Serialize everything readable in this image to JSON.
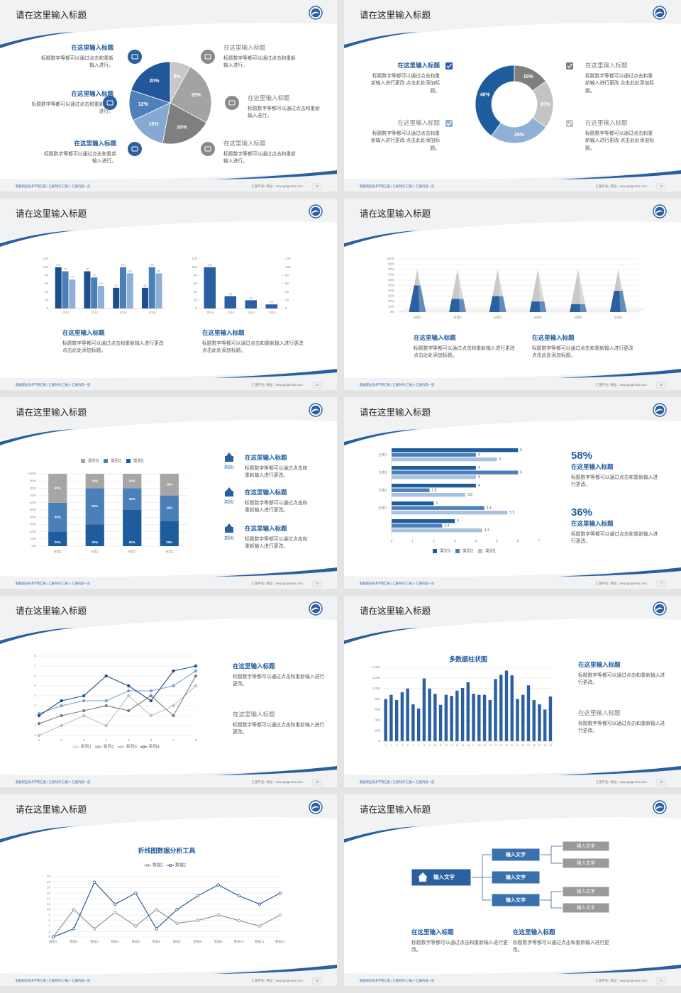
{
  "slides": [
    {
      "title": "请在这里输入标题",
      "footer_left": "船舶职业技术学院汇报 | 汇报时间·汇报人·汇报内容一览",
      "footer_right": "汇报平台 | 网址：www.pptgenius.com",
      "page": 12,
      "blocks": [
        {
          "heading": "在这里输入标题",
          "body": "标题数字等都可以通过点击和重新输入进行。"
        },
        {
          "heading": "在这里输入标题",
          "body": "标题数字等都可以通过点击和重新输入进行。"
        },
        {
          "heading": "在这里输入标题",
          "body": "标题数字等都可以通过点击和重新输入进行。"
        },
        {
          "heading": "在这里输入标题",
          "body": "标题数字等都可以通过点击和重新输入进行。"
        },
        {
          "heading": "在这里输入标题",
          "body": "标题数字等都可以通过点击和重新输入进行。"
        },
        {
          "heading": "在这里输入标题",
          "body": "标题数字等都可以通过点击和重新输入进行。"
        }
      ]
    },
    {
      "title": "请在这里输入标题",
      "footer_left": "船舶职业技术学院汇报 | 汇报时间·汇报人·汇报内容一览",
      "footer_right": "汇报平台 | 网址：www.pptgenius.com",
      "page": 13,
      "blocks": [
        {
          "heading": "在这里输入标题",
          "body": "标题数字等都可以通过点击和重新输入进行更改 点击此处添加标题。"
        },
        {
          "heading": "在这里输入标题",
          "body": "标题数字等都可以通过点击和重新输入进行更改 点击此处添加标题。"
        },
        {
          "heading": "在这里输入标题",
          "body": "标题数字等都可以通过点击和重新输入进行更改 点击此处添加标题。"
        },
        {
          "heading": "在这里输入标题",
          "body": "标题数字等都可以通过点击和重新输入进行更改 点击此处添加标题。"
        }
      ]
    },
    {
      "title": "请在这里输入标题",
      "footer_left": "船舶职业技术学院汇报 | 汇报时间·汇报人·汇报内容一览",
      "footer_right": "汇报平台 | 网址：www.pptgenius.com",
      "page": 14,
      "blocks": [
        {
          "heading": "在这里输入标题",
          "body": "标题数字等都可以通过点击和重新输入进行更改 点击此处添加标题。"
        },
        {
          "heading": "在这里输入标题",
          "body": "标题数字等都可以通过点击和重新输入进行更改 点击此处添加标题。"
        }
      ]
    },
    {
      "title": "请在这里输入标题",
      "footer_left": "船舶职业技术学院汇报 | 汇报时间·汇报人·汇报内容一览",
      "footer_right": "汇报平台 | 网址：www.pptgenius.com",
      "page": 15,
      "blocks": [
        {
          "heading": "在这里输入标题",
          "body": "标题数字等都可以通过点击和重新输入进行更改 点击此处添加标题。"
        },
        {
          "heading": "在这里输入标题",
          "body": "标题数字等都可以通过点击和重新输入进行更改 点击此处添加标题。"
        }
      ]
    },
    {
      "title": "请在这里输入标题",
      "footer_left": "船舶职业技术学院汇报 | 汇报时间·汇报人·汇报内容一览",
      "footer_right": "汇报平台 | 网址：www.pptgenius.com",
      "page": 16,
      "blocks": [
        {
          "icon_label": "类别1",
          "heading": "在这里输入标题",
          "body": "标题数字等都可以通过点击和重新输入进行更改。"
        },
        {
          "icon_label": "类别2",
          "heading": "在这里输入标题",
          "body": "标题数字等都可以通过点击和重新输入进行更改。"
        },
        {
          "icon_label": "类别3",
          "heading": "在这里输入标题",
          "body": "标题数字等都可以通过点击和重新输入进行更改。"
        }
      ]
    },
    {
      "title": "请在这里输入标题",
      "footer_left": "船舶职业技术学院汇报 | 汇报时间·汇报人·汇报内容一览",
      "footer_right": "汇报平台 | 网址：www.pptgenius.com",
      "page": 17,
      "blocks": [
        {
          "figure": "58%",
          "heading": "在这里输入标题",
          "body": "标题数字等都可以通过点击和重新输入进行更改。"
        },
        {
          "figure": "36%",
          "heading": "在这里输入标题",
          "body": "标题数字等都可以通过点击和重新输入进行更改。"
        }
      ]
    },
    {
      "title": "请在这里输入标题",
      "footer_left": "船舶职业技术学院汇报 | 汇报时间·汇报人·汇报内容一览",
      "footer_right": "汇报平台 | 网址：www.pptgenius.com",
      "page": 18,
      "blocks": [
        {
          "heading": "在这里输入标题",
          "body": "标题数字等都可以通过点击和重新输入进行更改。"
        },
        {
          "heading": "在这里输入标题",
          "body": "标题数字等都可以通过点击和重新输入进行更改。"
        }
      ]
    },
    {
      "title": "请在这里输入标题",
      "footer_left": "船舶职业技术学院汇报 | 汇报时间·汇报人·汇报内容一览",
      "footer_right": "汇报平台 | 网址：www.pptgenius.com",
      "page": 19,
      "blocks": [
        {
          "heading": "在这里输入标题",
          "body": "标题数字等都可以通过点击和重新输入进行更改。"
        },
        {
          "heading": "在这里输入标题",
          "body": "标题数字等都可以通过点击和重新输入进行更改。"
        }
      ]
    },
    {
      "title": "请在这里输入标题",
      "footer_left": "船舶职业技术学院汇报 | 汇报时间·汇报人·汇报内容一览",
      "footer_right": "汇报平台 | 网址：www.pptgenius.com",
      "page": 20,
      "blocks": []
    },
    {
      "title": "请在这里输入标题",
      "footer_left": "船舶职业技术学院汇报 | 汇报时间·汇报人·汇报内容一览",
      "footer_right": "汇报平台 | 网址：www.pptgenius.com",
      "page": 21,
      "diagram": {
        "root": "输入文字",
        "branches": [
          "输入文字",
          "输入文字",
          "输入文字"
        ],
        "leaves": [
          "输入文字",
          "输入文字",
          "输入文字",
          "输入文字"
        ]
      },
      "blocks": [
        {
          "heading": "在这里输入标题",
          "body": "标题数字等都可以通过点击和重新输入进行更改。"
        },
        {
          "heading": "在这里输入标题",
          "body": "标题数字等都可以通过点击和重新输入进行更改。"
        }
      ]
    }
  ],
  "chart_data": [
    {
      "type": "pie",
      "values": [
        8,
        25,
        20,
        15,
        12,
        20
      ],
      "value_labels": [
        "8%",
        "25%",
        "20%",
        "15%",
        "12%",
        "20%"
      ],
      "colors": [
        "#c8c8c8",
        "#a3a3a3",
        "#7f7f7f",
        "#86a9d2",
        "#4f80b9",
        "#22589a"
      ]
    },
    {
      "type": "donut",
      "values": [
        15,
        20,
        25,
        40
      ],
      "value_labels": [
        "15%",
        "20%",
        "25%",
        "40%"
      ],
      "colors": [
        "#7f7f7f",
        "#c3c3c3",
        "#8fb0d6",
        "#1f5c9e"
      ]
    },
    {
      "type": "bar",
      "categories": [
        "2010",
        "2012",
        "2014",
        "2016"
      ],
      "series": [
        {
          "color": "#1f4e8c",
          "values": [
            100,
            90,
            50,
            50
          ]
        },
        {
          "color": "#4a7fb8",
          "values": [
            90,
            75,
            100,
            100
          ]
        },
        {
          "color": "#8fb0d6",
          "values": [
            70,
            55,
            85,
            85
          ]
        }
      ],
      "ylim": [
        0,
        120
      ],
      "yticks": [
        0,
        20,
        40,
        60,
        80,
        100,
        120
      ],
      "grid": false,
      "data_labels": true
    },
    {
      "type": "bar",
      "categories": [
        "2016",
        "2014",
        "2012",
        "2010"
      ],
      "values": [
        100,
        30,
        20,
        10
      ],
      "color": "#2a5fa0",
      "ylim": [
        0,
        120
      ],
      "yticks": [
        0,
        20,
        40,
        60,
        80,
        100,
        120
      ],
      "y2lim": [
        0,
        120
      ],
      "y2ticks": [
        0,
        20,
        40,
        60,
        80,
        100,
        120
      ],
      "grid": false,
      "data_labels": true
    },
    {
      "type": "pyramid3d",
      "categories": [
        "分类1",
        "分类2",
        "分类3",
        "分类4",
        "分类5",
        "分类6"
      ],
      "series": [
        {
          "color": "#2a5fa0",
          "values": [
            50,
            25,
            30,
            20,
            15,
            40
          ]
        },
        {
          "color": "#c9c9c9",
          "values": [
            30,
            55,
            50,
            60,
            65,
            40
          ]
        }
      ],
      "ylim": [
        0,
        100
      ],
      "yticks": [
        {
          "value": 0,
          "label": "0%"
        },
        {
          "value": 10,
          "label": "10%"
        },
        {
          "value": 20,
          "label": "20%"
        },
        {
          "value": 30,
          "label": "30%"
        },
        {
          "value": 40,
          "label": "40%"
        },
        {
          "value": 50,
          "label": "50%"
        },
        {
          "value": 60,
          "label": "60%"
        },
        {
          "value": 70,
          "label": "70%"
        },
        {
          "value": 80,
          "label": "80%"
        },
        {
          "value": 90,
          "label": "90%"
        },
        {
          "value": 100,
          "label": "100%"
        }
      ],
      "grid": true
    },
    {
      "type": "stacked100",
      "categories": [
        "分类1",
        "分类2",
        "分类3",
        "分类4"
      ],
      "series": [
        {
          "name": "类别1",
          "color": "#1f5c9e",
          "values": [
            20,
            30,
            50,
            35
          ],
          "value_labels": [
            "20%",
            "30%",
            "50%",
            "35%"
          ]
        },
        {
          "name": "类别2",
          "color": "#4a7fb8",
          "values": [
            40,
            50,
            30,
            35
          ],
          "value_labels": [
            "40%",
            "50%",
            "30%",
            "35%"
          ]
        },
        {
          "name": "类别3",
          "color": "#a6a6a6",
          "values": [
            40,
            20,
            20,
            30
          ],
          "value_labels": [
            "40%",
            "20%",
            "20%",
            "30%"
          ]
        }
      ],
      "ylim": [
        0,
        100
      ],
      "yticks": [
        {
          "value": 0,
          "label": "0%"
        },
        {
          "value": 10,
          "label": "10%"
        },
        {
          "value": 20,
          "label": "20%"
        },
        {
          "value": 30,
          "label": "30%"
        },
        {
          "value": 40,
          "label": "40%"
        },
        {
          "value": 50,
          "label": "50%"
        },
        {
          "value": 60,
          "label": "60%"
        },
        {
          "value": 70,
          "label": "70%"
        },
        {
          "value": 80,
          "label": "80%"
        },
        {
          "value": 90,
          "label": "90%"
        },
        {
          "value": 100,
          "label": "100%"
        }
      ],
      "grid": true,
      "legend": "top"
    },
    {
      "type": "hbar",
      "categories": [
        "分类4",
        "分类3",
        "分类2",
        "分类1",
        null
      ],
      "series": [
        {
          "name": "类别3",
          "color": "#1f5c9e",
          "values": [
            6,
            4,
            4,
            2,
            3
          ]
        },
        {
          "name": "类别2",
          "color": "#4a7fb8",
          "values": [
            4,
            6,
            1.8,
            4.4,
            2.4
          ]
        },
        {
          "name": "类别1",
          "color": "#a9c2e0",
          "values": [
            5,
            4,
            3.5,
            5.5,
            4.3
          ]
        }
      ],
      "xlim": [
        0,
        7
      ],
      "xticks": [
        0,
        1,
        2,
        3,
        4,
        5,
        6,
        7
      ],
      "legend": "bottom"
    },
    {
      "type": "line",
      "categories": [
        "1",
        "2",
        "3",
        "4",
        "5",
        "6",
        "7",
        "8"
      ],
      "series": [
        {
          "name": "系列1",
          "color": "#bfbfbf",
          "values": [
            0,
            1,
            2,
            1,
            4,
            2,
            3,
            5
          ]
        },
        {
          "name": "系列2",
          "color": "#7f7f7f",
          "values": [
            1.2,
            2,
            2.5,
            3,
            2.5,
            4,
            2,
            6
          ]
        },
        {
          "name": "系列3",
          "color": "#7ea3cc",
          "values": [
            2.2,
            3,
            3.5,
            3.5,
            4.5,
            4.5,
            5,
            6.5
          ]
        },
        {
          "name": "系列4",
          "color": "#1f4e8c",
          "values": [
            2,
            3.5,
            4,
            6,
            5,
            3.5,
            6.5,
            7
          ]
        }
      ],
      "ylim": [
        0,
        8
      ],
      "yticks": [
        0,
        1,
        2,
        3,
        4,
        5,
        6,
        7,
        8
      ],
      "grid": true,
      "legend": "bottom"
    },
    {
      "type": "bar",
      "title": "多数据柱状图",
      "categories": [
        "1",
        "2",
        "3",
        "4",
        "5",
        "6",
        "7",
        "8",
        "9",
        "10",
        "11",
        "12",
        "13",
        "14",
        "15",
        "16",
        "17",
        "18",
        "19",
        "20",
        "21",
        "22",
        "23",
        "24",
        "25",
        "26",
        "27",
        "28",
        "29",
        "30",
        "31"
      ],
      "values": [
        800,
        880,
        780,
        930,
        1000,
        700,
        620,
        1190,
        1000,
        900,
        690,
        880,
        860,
        960,
        1010,
        1120,
        900,
        880,
        880,
        780,
        1180,
        1260,
        1340,
        1250,
        800,
        880,
        1060,
        780,
        700,
        600,
        850
      ],
      "color": "#2a5fa0",
      "ylim": [
        0,
        1400
      ],
      "yticks": [
        0,
        200,
        400,
        600,
        800,
        {
          "value": 1000,
          "label": "1,000"
        },
        {
          "value": 1200,
          "label": "1,200"
        },
        {
          "value": 1400,
          "label": "1,400"
        }
      ],
      "grid": true,
      "data_labels": false
    },
    {
      "type": "line",
      "title": "折线图数据分析工具",
      "categories": [
        "数据1",
        "数据2",
        "数据3",
        "数据4",
        "数据5",
        "数据6",
        "数据7",
        "数据8",
        "数据9",
        "数据10",
        "数据11",
        "数据12"
      ],
      "series": [
        {
          "name": "数据1",
          "color": "#8c8c8c",
          "values": [
            0,
            10,
            3,
            9,
            4,
            10,
            5,
            6,
            8,
            6,
            4,
            8
          ]
        },
        {
          "name": "数据2",
          "color": "#1f4e8c",
          "values": [
            0,
            3,
            20,
            12,
            16,
            3,
            10,
            15,
            19,
            15,
            12,
            16
          ]
        }
      ],
      "ylim": [
        0,
        22
      ],
      "yticks": [
        0,
        2,
        4,
        6,
        8,
        10,
        12,
        14,
        16,
        18,
        20,
        22
      ],
      "grid": true,
      "legend": "top"
    }
  ]
}
